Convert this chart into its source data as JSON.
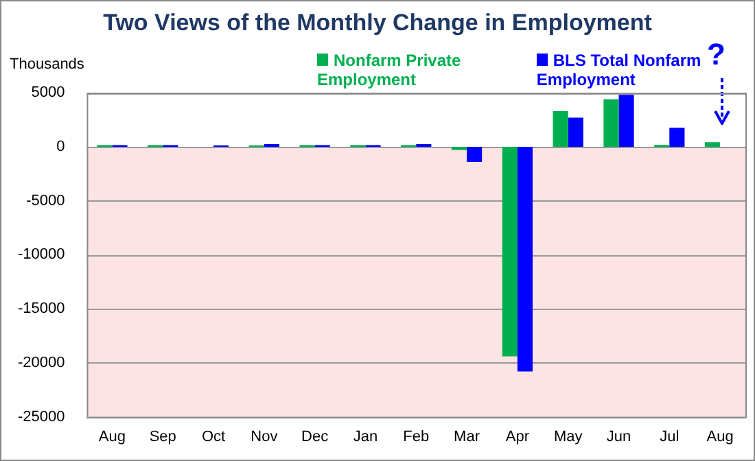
{
  "chart_data": {
    "type": "bar",
    "title": "Two Views of the Monthly Change in Employment",
    "ylabel": "Thousands",
    "categories": [
      "Aug",
      "Sep",
      "Oct",
      "Nov",
      "Dec",
      "Jan",
      "Feb",
      "Mar",
      "Apr",
      "May",
      "Jun",
      "Jul",
      "Aug"
    ],
    "series": [
      {
        "name": "Nonfarm Private Employment",
        "color": "#00b050",
        "values": [
          150,
          150,
          null,
          120,
          150,
          150,
          150,
          -300,
          -19400,
          3300,
          4400,
          170,
          430
        ]
      },
      {
        "name": "BLS Total Nonfarm Employment",
        "color": "#0000ff",
        "values": [
          150,
          150,
          130,
          250,
          150,
          150,
          250,
          -1400,
          -20800,
          2700,
          4800,
          1760,
          null
        ]
      }
    ],
    "ylim": [
      -25000,
      5000
    ],
    "yticks": [
      -25000,
      -20000,
      -15000,
      -10000,
      -5000,
      0,
      5000
    ],
    "grid": "y",
    "legend": "top",
    "bands": [
      {
        "axis": "y",
        "from": -25000,
        "to": 0,
        "color": "#fde4e4"
      }
    ],
    "annotations": [
      "?"
    ]
  }
}
